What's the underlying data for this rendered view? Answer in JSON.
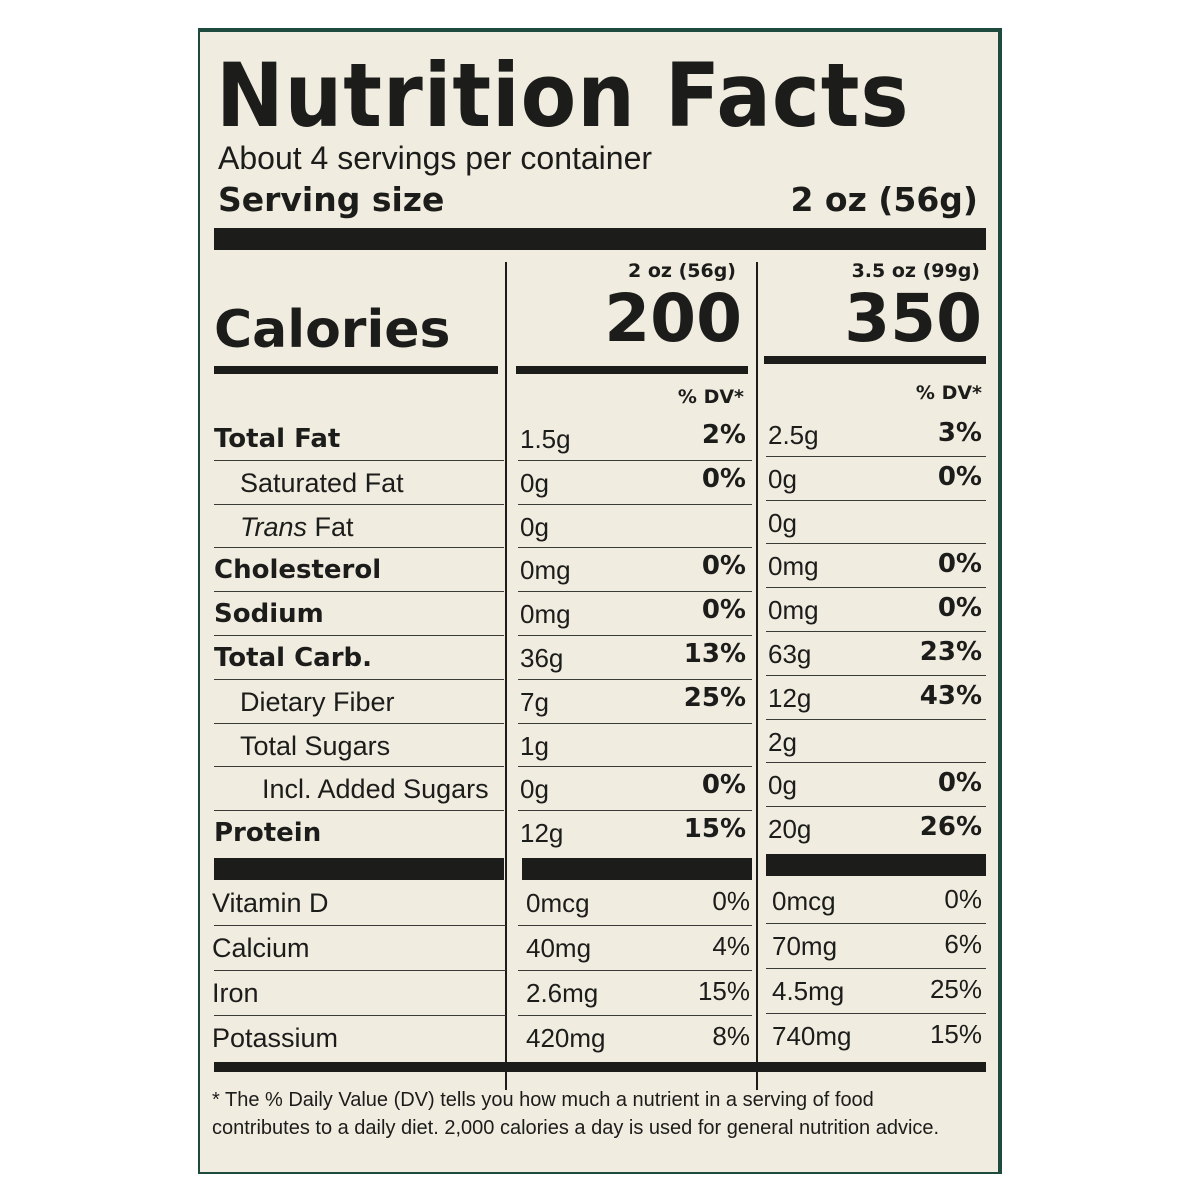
{
  "title": "Nutrition Facts",
  "servings_per_container": "About 4 servings per container",
  "serving_size_label": "Serving size",
  "serving_size_value": "2 oz (56g)",
  "calories_label": "Calories",
  "columns": [
    {
      "header": "2 oz (56g)",
      "calories": "200",
      "dv_header": "% DV*"
    },
    {
      "header": "3.5 oz (99g)",
      "calories": "350",
      "dv_header": "% DV*"
    }
  ],
  "nutrients": [
    {
      "label": "Total Fat",
      "bold": true,
      "indent": 0,
      "values": [
        [
          "1.5g",
          "2%"
        ],
        [
          "2.5g",
          "3%"
        ]
      ]
    },
    {
      "label": "Saturated Fat",
      "bold": false,
      "indent": 1,
      "values": [
        [
          "0g",
          "0%"
        ],
        [
          "0g",
          "0%"
        ]
      ]
    },
    {
      "label_italic": "Trans",
      "label": " Fat",
      "bold": false,
      "indent": 1,
      "values": [
        [
          "0g",
          ""
        ],
        [
          "0g",
          ""
        ]
      ]
    },
    {
      "label": "Cholesterol",
      "bold": true,
      "indent": 0,
      "values": [
        [
          "0mg",
          "0%"
        ],
        [
          "0mg",
          "0%"
        ]
      ]
    },
    {
      "label": "Sodium",
      "bold": true,
      "indent": 0,
      "values": [
        [
          "0mg",
          "0%"
        ],
        [
          "0mg",
          "0%"
        ]
      ]
    },
    {
      "label": "Total Carb.",
      "bold": true,
      "indent": 0,
      "values": [
        [
          "36g",
          "13%"
        ],
        [
          "63g",
          "23%"
        ]
      ]
    },
    {
      "label": "Dietary Fiber",
      "bold": false,
      "indent": 1,
      "values": [
        [
          "7g",
          "25%"
        ],
        [
          "12g",
          "43%"
        ]
      ]
    },
    {
      "label": "Total Sugars",
      "bold": false,
      "indent": 1,
      "values": [
        [
          "1g",
          ""
        ],
        [
          "2g",
          ""
        ]
      ]
    },
    {
      "label": "Incl. Added Sugars",
      "bold": false,
      "indent": 2,
      "values": [
        [
          "0g",
          "0%"
        ],
        [
          "0g",
          "0%"
        ]
      ]
    },
    {
      "label": "Protein",
      "bold": true,
      "indent": 0,
      "values": [
        [
          "12g",
          "15%"
        ],
        [
          "20g",
          "26%"
        ]
      ]
    }
  ],
  "vitamins": [
    {
      "label": "Vitamin D",
      "values": [
        [
          "0mcg",
          "0%"
        ],
        [
          "0mcg",
          "0%"
        ]
      ]
    },
    {
      "label": "Calcium",
      "values": [
        [
          "40mg",
          "4%"
        ],
        [
          "70mg",
          "6%"
        ]
      ]
    },
    {
      "label": "Iron",
      "values": [
        [
          "2.6mg",
          "15%"
        ],
        [
          "4.5mg",
          "25%"
        ]
      ]
    },
    {
      "label": "Potassium",
      "values": [
        [
          "420mg",
          "8%"
        ],
        [
          "740mg",
          "15%"
        ]
      ]
    }
  ],
  "footnote": "* The % Daily Value (DV) tells you how much a nutrient in a serving of food contributes to a daily diet. 2,000 calories a day is used for general nutrition advice."
}
